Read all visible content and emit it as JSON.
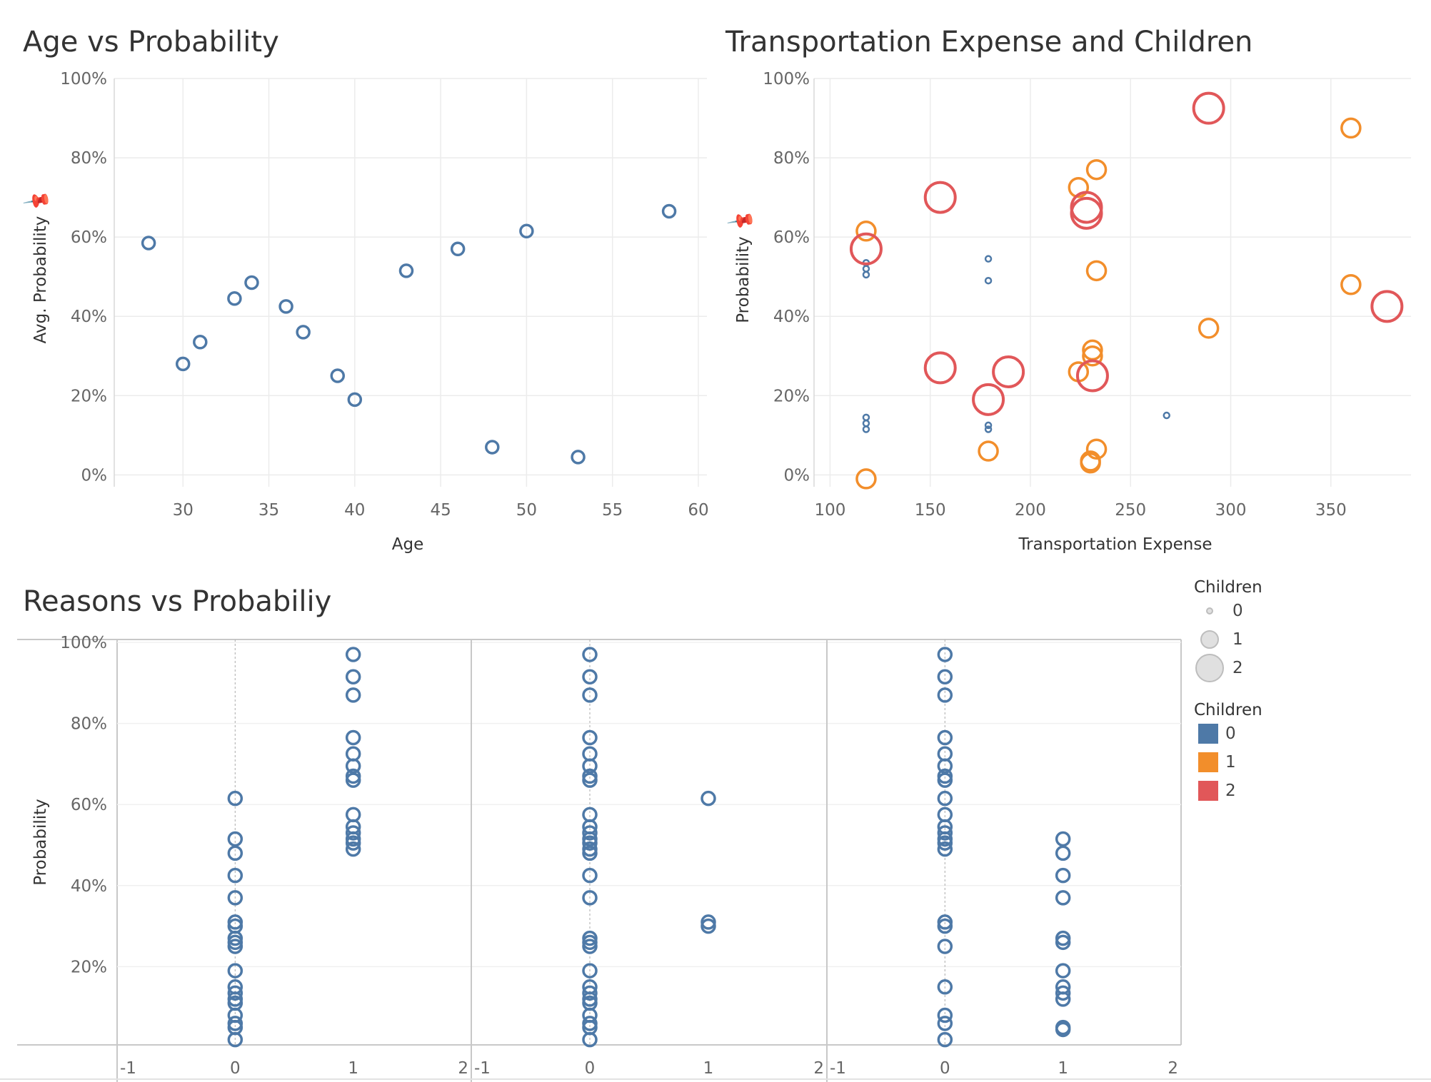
{
  "chart_data": [
    {
      "type": "scatter",
      "title": "Age vs Probability",
      "xlabel": "Age",
      "ylabel": "Avg. Probability",
      "xlim": [
        26,
        60.5
      ],
      "ylim": [
        -0.03,
        1.0
      ],
      "xticks": [
        "30",
        "35",
        "40",
        "45",
        "50",
        "55",
        "60"
      ],
      "yticks": [
        "0%",
        "20%",
        "40%",
        "60%",
        "80%",
        "100%"
      ],
      "series": [
        {
          "color": "#4e79a7",
          "points": [
            [
              28,
              0.585
            ],
            [
              30,
              0.28
            ],
            [
              31,
              0.335
            ],
            [
              33,
              0.445
            ],
            [
              34,
              0.485
            ],
            [
              36,
              0.425
            ],
            [
              37,
              0.36
            ],
            [
              39,
              0.25
            ],
            [
              40,
              0.19
            ],
            [
              43,
              0.515
            ],
            [
              46,
              0.57
            ],
            [
              48,
              0.07
            ],
            [
              50,
              0.615
            ],
            [
              53,
              0.045
            ],
            [
              58.3,
              0.665
            ]
          ]
        }
      ]
    },
    {
      "type": "scatter",
      "title": "Transportation Expense and Children",
      "xlabel": "Transportation Expense",
      "ylabel": "Probability",
      "xlim": [
        92,
        390
      ],
      "ylim": [
        -0.03,
        1.0
      ],
      "xticks": [
        "100",
        "150",
        "200",
        "250",
        "300",
        "350"
      ],
      "yticks": [
        "0%",
        "20%",
        "40%",
        "60%",
        "80%",
        "100%"
      ],
      "series": [
        {
          "children": "0",
          "color": "#4e79a7",
          "points": [
            [
              118,
              0.535
            ],
            [
              118,
              0.52
            ],
            [
              118,
              0.505
            ],
            [
              118,
              0.145
            ],
            [
              118,
              0.13
            ],
            [
              118,
              0.115
            ],
            [
              179,
              0.545
            ],
            [
              179,
              0.49
            ],
            [
              179,
              0.125
            ],
            [
              179,
              0.115
            ],
            [
              268,
              0.15
            ]
          ]
        },
        {
          "children": "1",
          "color": "#f28e2b",
          "points": [
            [
              118,
              0.615
            ],
            [
              118,
              -0.01
            ],
            [
              179,
              0.06
            ],
            [
              224,
              0.725
            ],
            [
              224,
              0.26
            ],
            [
              233,
              0.77
            ],
            [
              233,
              0.515
            ],
            [
              231,
              0.315
            ],
            [
              231,
              0.3
            ],
            [
              233,
              0.065
            ],
            [
              230,
              0.035
            ],
            [
              230,
              0.03
            ],
            [
              289,
              0.37
            ],
            [
              360,
              0.875
            ],
            [
              360,
              0.48
            ]
          ]
        },
        {
          "children": "2",
          "color": "#e15759",
          "points": [
            [
              118,
              0.57
            ],
            [
              155,
              0.7
            ],
            [
              155,
              0.27
            ],
            [
              179,
              0.19
            ],
            [
              189,
              0.26
            ],
            [
              228,
              0.675
            ],
            [
              228,
              0.66
            ],
            [
              231,
              0.25
            ],
            [
              289,
              0.925
            ],
            [
              378,
              0.425
            ]
          ]
        }
      ]
    },
    {
      "type": "scatter",
      "title": "Reasons vs Probabiliy",
      "xlabel": "",
      "ylabel": "Probability",
      "ylim": [
        0.0,
        1.0
      ],
      "xlim": [
        -1,
        2
      ],
      "xticks": [
        "-1",
        "0",
        "1",
        "2"
      ],
      "yticks": [
        "20%",
        "40%",
        "60%",
        "80%",
        "100%"
      ],
      "panels": [
        {
          "points": [
            [
              0,
              0.615
            ],
            [
              0,
              0.515
            ],
            [
              0,
              0.48
            ],
            [
              0,
              0.425
            ],
            [
              0,
              0.37
            ],
            [
              0,
              0.31
            ],
            [
              0,
              0.3
            ],
            [
              0,
              0.27
            ],
            [
              0,
              0.26
            ],
            [
              0,
              0.25
            ],
            [
              0,
              0.19
            ],
            [
              0,
              0.15
            ],
            [
              0,
              0.135
            ],
            [
              0,
              0.12
            ],
            [
              0,
              0.11
            ],
            [
              0,
              0.08
            ],
            [
              0,
              0.06
            ],
            [
              0,
              0.05
            ],
            [
              0,
              0.02
            ],
            [
              1,
              0.97
            ],
            [
              1,
              0.915
            ],
            [
              1,
              0.87
            ],
            [
              1,
              0.765
            ],
            [
              1,
              0.725
            ],
            [
              1,
              0.695
            ],
            [
              1,
              0.67
            ],
            [
              1,
              0.66
            ],
            [
              1,
              0.575
            ],
            [
              1,
              0.545
            ],
            [
              1,
              0.53
            ],
            [
              1,
              0.515
            ],
            [
              1,
              0.505
            ],
            [
              1,
              0.49
            ]
          ]
        },
        {
          "points": [
            [
              0,
              0.97
            ],
            [
              0,
              0.915
            ],
            [
              0,
              0.87
            ],
            [
              0,
              0.765
            ],
            [
              0,
              0.725
            ],
            [
              0,
              0.695
            ],
            [
              0,
              0.67
            ],
            [
              0,
              0.66
            ],
            [
              0,
              0.575
            ],
            [
              0,
              0.545
            ],
            [
              0,
              0.53
            ],
            [
              0,
              0.515
            ],
            [
              0,
              0.505
            ],
            [
              0,
              0.49
            ],
            [
              0,
              0.48
            ],
            [
              0,
              0.425
            ],
            [
              0,
              0.37
            ],
            [
              0,
              0.27
            ],
            [
              0,
              0.26
            ],
            [
              0,
              0.25
            ],
            [
              0,
              0.19
            ],
            [
              0,
              0.15
            ],
            [
              0,
              0.135
            ],
            [
              0,
              0.12
            ],
            [
              0,
              0.11
            ],
            [
              0,
              0.08
            ],
            [
              0,
              0.06
            ],
            [
              0,
              0.05
            ],
            [
              0,
              0.02
            ],
            [
              1,
              0.615
            ],
            [
              1,
              0.31
            ],
            [
              1,
              0.3
            ]
          ]
        },
        {
          "points": [
            [
              0,
              0.97
            ],
            [
              0,
              0.915
            ],
            [
              0,
              0.87
            ],
            [
              0,
              0.765
            ],
            [
              0,
              0.725
            ],
            [
              0,
              0.695
            ],
            [
              0,
              0.67
            ],
            [
              0,
              0.66
            ],
            [
              0,
              0.615
            ],
            [
              0,
              0.575
            ],
            [
              0,
              0.545
            ],
            [
              0,
              0.53
            ],
            [
              0,
              0.515
            ],
            [
              0,
              0.505
            ],
            [
              0,
              0.49
            ],
            [
              0,
              0.31
            ],
            [
              0,
              0.3
            ],
            [
              0,
              0.25
            ],
            [
              0,
              0.15
            ],
            [
              0,
              0.08
            ],
            [
              0,
              0.06
            ],
            [
              0,
              0.02
            ],
            [
              1,
              0.515
            ],
            [
              1,
              0.48
            ],
            [
              1,
              0.425
            ],
            [
              1,
              0.37
            ],
            [
              1,
              0.27
            ],
            [
              1,
              0.26
            ],
            [
              1,
              0.19
            ],
            [
              1,
              0.15
            ],
            [
              1,
              0.135
            ],
            [
              1,
              0.12
            ],
            [
              1,
              0.05
            ],
            [
              1,
              0.045
            ]
          ]
        }
      ]
    }
  ],
  "legend_size": {
    "title": "Children",
    "items": [
      {
        "label": "0",
        "value": 0
      },
      {
        "label": "1",
        "value": 1
      },
      {
        "label": "2",
        "value": 2
      }
    ]
  },
  "legend_color": {
    "title": "Children",
    "items": [
      {
        "label": "0",
        "color": "#4e79a7"
      },
      {
        "label": "1",
        "color": "#f28e2b"
      },
      {
        "label": "2",
        "color": "#e15759"
      }
    ]
  }
}
